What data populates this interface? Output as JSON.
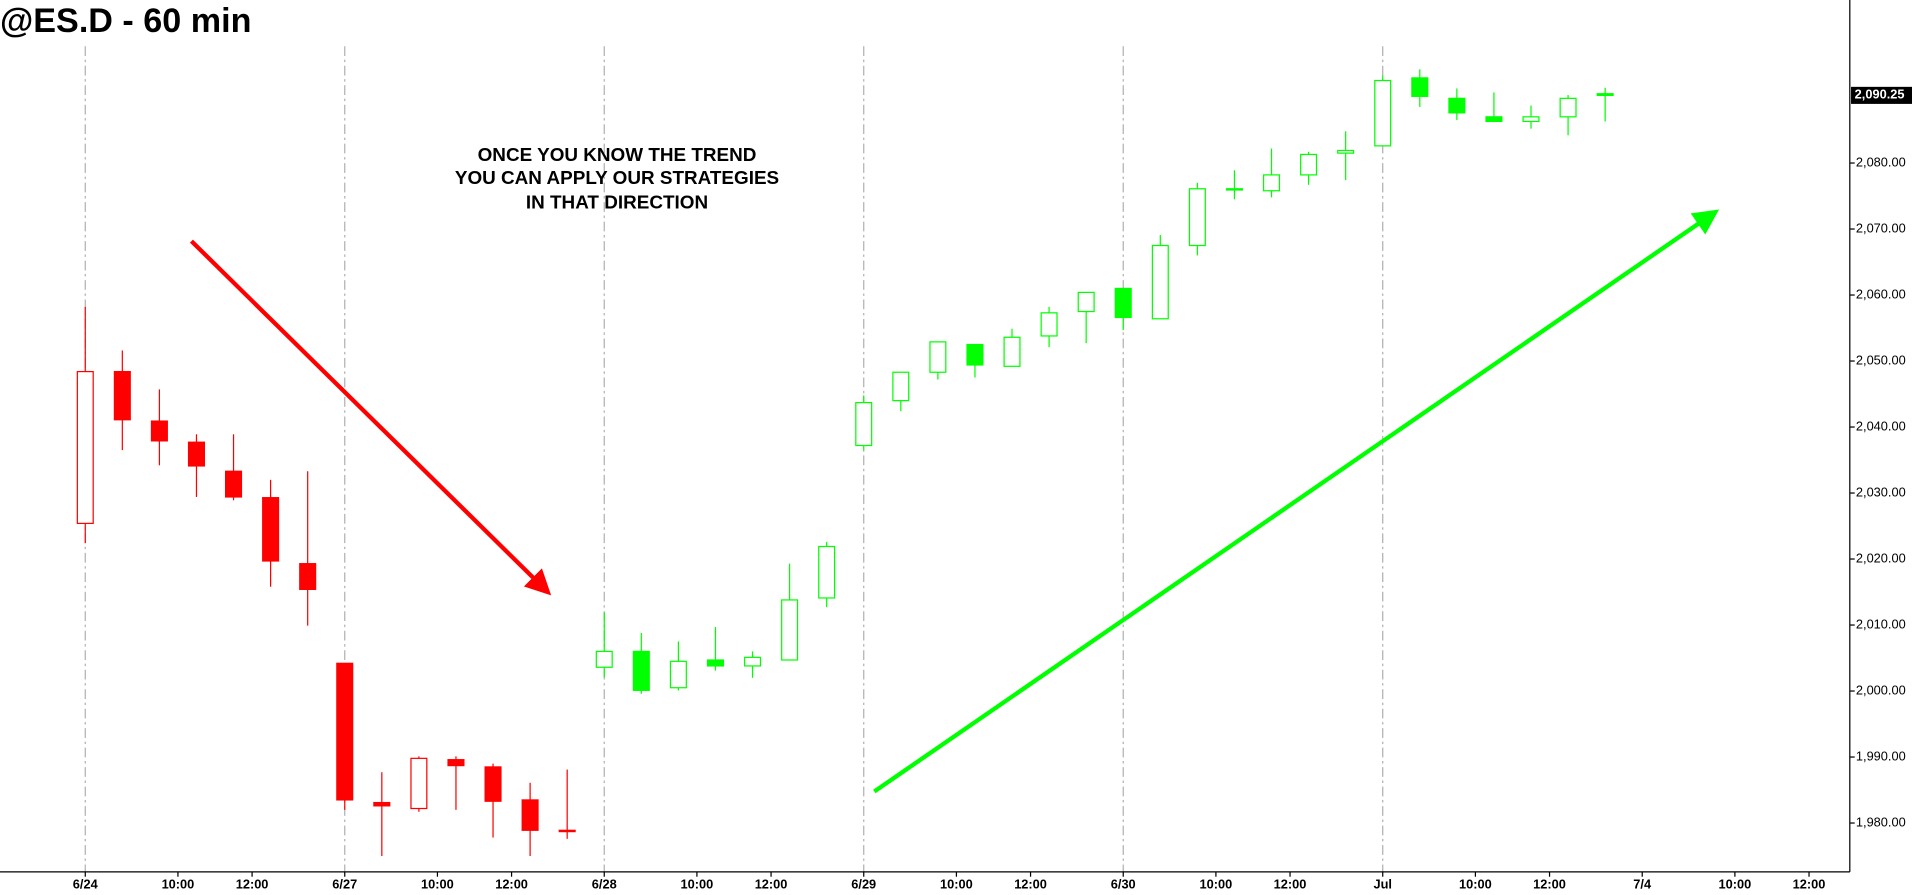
{
  "chart_data": {
    "type": "candlestick",
    "title": "@ES.D - 60 min",
    "annotation": [
      "ONCE YOU KNOW THE TREND",
      "YOU CAN APPLY OUR STRATEGIES",
      "IN THAT DIRECTION"
    ],
    "xlim": [
      -2.3,
      47.6
    ],
    "ylim": [
      1972.6,
      2104.7
    ],
    "xticks": [
      {
        "value": 0,
        "label": "6/24"
      },
      {
        "value": 2.5,
        "label": "10:00"
      },
      {
        "value": 4.5,
        "label": "12:00"
      },
      {
        "value": 7,
        "label": "6/27"
      },
      {
        "value": 9.5,
        "label": "10:00"
      },
      {
        "value": 11.5,
        "label": "12:00"
      },
      {
        "value": 14,
        "label": "6/28"
      },
      {
        "value": 16.5,
        "label": "10:00"
      },
      {
        "value": 18.5,
        "label": "12:00"
      },
      {
        "value": 21,
        "label": "6/29"
      },
      {
        "value": 23.5,
        "label": "10:00"
      },
      {
        "value": 25.5,
        "label": "12:00"
      },
      {
        "value": 28,
        "label": "6/30"
      },
      {
        "value": 30.5,
        "label": "10:00"
      },
      {
        "value": 32.5,
        "label": "12:00"
      },
      {
        "value": 35,
        "label": "Jul"
      },
      {
        "value": 37.5,
        "label": "10:00"
      },
      {
        "value": 39.5,
        "label": "12:00"
      },
      {
        "value": 42,
        "label": "7/4"
      },
      {
        "value": 44.5,
        "label": "10:00"
      },
      {
        "value": 46.5,
        "label": "12:00"
      }
    ],
    "xgrid": [
      0,
      7,
      14,
      21,
      28,
      35
    ],
    "yticks": [
      {
        "value": 1980,
        "label": "1,980.00"
      },
      {
        "value": 1990,
        "label": "1,990.00"
      },
      {
        "value": 2000,
        "label": "2,000.00"
      },
      {
        "value": 2010,
        "label": "2,010.00"
      },
      {
        "value": 2020,
        "label": "2,020.00"
      },
      {
        "value": 2030,
        "label": "2,030.00"
      },
      {
        "value": 2040,
        "label": "2,040.00"
      },
      {
        "value": 2050,
        "label": "2,050.00"
      },
      {
        "value": 2060,
        "label": "2,060.00"
      },
      {
        "value": 2070,
        "label": "2,070.00"
      },
      {
        "value": 2080,
        "label": "2,080.00"
      }
    ],
    "last_price": {
      "value": 2090.25,
      "label": "2,090.25"
    },
    "candles": [
      {
        "color": "#ff0000",
        "x": [
          0,
          1,
          2,
          3,
          4,
          5,
          6,
          7,
          8,
          9,
          10,
          11,
          12,
          13
        ],
        "open": [
          2025.4,
          2048.4,
          2040.9,
          2037.7,
          2033.3,
          2029.3,
          2019.3,
          2004.2,
          1983.1,
          1982.2,
          1989.6,
          1988.5,
          1983.5,
          1978.9
        ],
        "high": [
          2058.2,
          2051.6,
          2045.7,
          2038.9,
          2038.9,
          2032.0,
          2033.3,
          2004.2,
          1987.7,
          1990.1,
          1990.1,
          1989.0,
          1986.1,
          1988.1
        ],
        "low": [
          2022.4,
          2036.5,
          2034.2,
          2029.4,
          2028.9,
          2015.8,
          2009.9,
          1982.0,
          1975.0,
          1981.7,
          1982.0,
          1977.8,
          1975.0,
          1977.6
        ],
        "close": [
          2048.4,
          2041.1,
          2037.9,
          2034.1,
          2029.4,
          2019.7,
          2015.4,
          1983.5,
          1982.6,
          1989.8,
          1988.7,
          1983.3,
          1978.9,
          1978.7
        ]
      },
      {
        "color": "#00ff00",
        "x": [
          14,
          15,
          16,
          17,
          18,
          19,
          20,
          21,
          22,
          23,
          24,
          25,
          26,
          27,
          28,
          29,
          30,
          31,
          32,
          33,
          34,
          35,
          36,
          37,
          38,
          39,
          40,
          41
        ],
        "open": [
          2003.6,
          2006.0,
          2000.5,
          2004.7,
          2003.8,
          2004.7,
          2014.1,
          2037.2,
          2044.0,
          2048.3,
          2052.5,
          2049.2,
          2053.8,
          2057.5,
          2061.0,
          2056.4,
          2067.5,
          2076.1,
          2075.8,
          2078.2,
          2081.5,
          2082.6,
          2092.9,
          2089.8,
          2087.0,
          2086.3,
          2087.0,
          2090.5
        ],
        "high": [
          2011.9,
          2008.8,
          2007.5,
          2009.7,
          2006.0,
          2019.3,
          2022.6,
          2044.8,
          2048.3,
          2052.9,
          2052.5,
          2054.9,
          2058.2,
          2060.4,
          2061.0,
          2069.1,
          2077.0,
          2078.9,
          2082.2,
          2081.7,
          2084.8,
          2093.3,
          2094.2,
          2091.3,
          2090.7,
          2088.7,
          2090.3,
          2091.4
        ],
        "low": [
          2002.1,
          1999.6,
          2000.1,
          2003.1,
          2002.0,
          2004.7,
          2012.7,
          2036.5,
          2042.4,
          2047.2,
          2047.5,
          2049.2,
          2052.1,
          2052.7,
          2054.7,
          2056.4,
          2066.0,
          2074.5,
          2074.8,
          2076.7,
          2077.4,
          2082.6,
          2088.5,
          2086.5,
          2086.3,
          2085.2,
          2084.2,
          2086.3
        ],
        "close": [
          2006.0,
          2000.1,
          2004.5,
          2003.8,
          2005.1,
          2013.8,
          2021.9,
          2043.7,
          2048.3,
          2052.9,
          2049.4,
          2053.6,
          2057.3,
          2060.4,
          2056.6,
          2067.5,
          2076.1,
          2076.1,
          2078.2,
          2081.3,
          2081.9,
          2092.5,
          2090.1,
          2087.6,
          2086.3,
          2087.0,
          2089.8,
          2090.25
        ]
      }
    ]
  }
}
